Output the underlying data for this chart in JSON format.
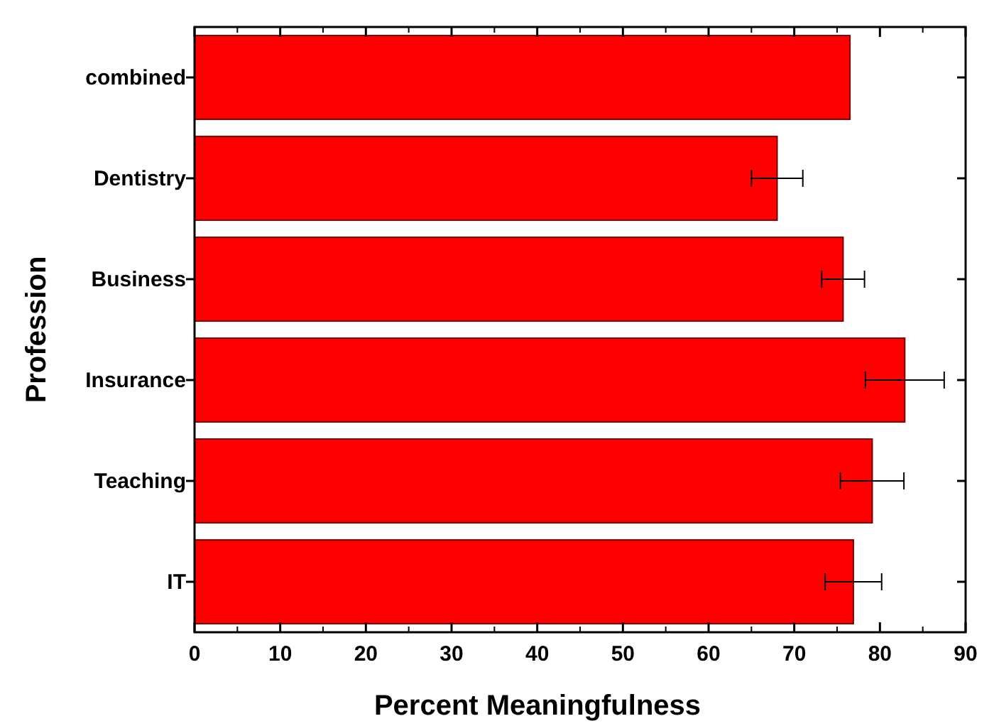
{
  "chart_data": {
    "type": "bar",
    "orientation": "horizontal",
    "xlabel": "Percent Meaningfulness",
    "ylabel": "Profession",
    "categories": [
      "combined",
      "Dentistry",
      "Business",
      "Insurance",
      "Teaching",
      "IT"
    ],
    "values": [
      76.5,
      68,
      75.7,
      82.9,
      79.1,
      76.9
    ],
    "errors": [
      null,
      3,
      2.5,
      4.6,
      3.7,
      3.3
    ],
    "color": "#ff0000",
    "xlim": [
      0,
      90
    ],
    "xticks": [
      0,
      10,
      20,
      30,
      40,
      50,
      60,
      70,
      80,
      90
    ],
    "grid": false
  }
}
